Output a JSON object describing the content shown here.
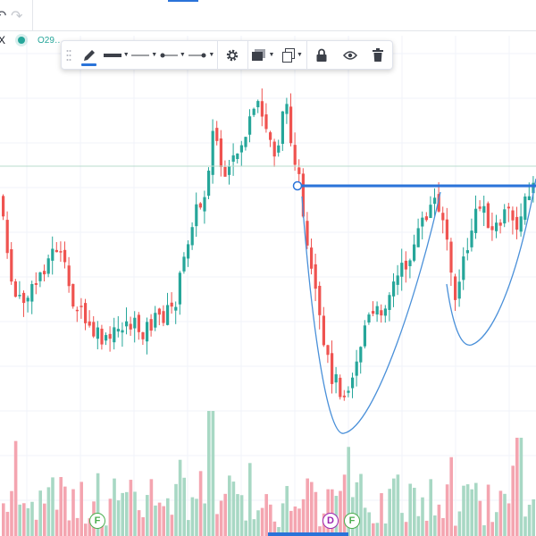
{
  "topbar": {
    "undo_icon": "undo-icon",
    "redo_icon": "redo-icon"
  },
  "legend": {
    "symbol_fragment": "X",
    "ohlc_fragment": "O29…",
    "status_color": "#26a69a"
  },
  "drawing_toolbar": {
    "tools": [
      {
        "name": "drag-handle",
        "icon": "drag-dots-icon"
      },
      {
        "name": "pencil-tool",
        "icon": "pencil-icon",
        "active": true
      },
      {
        "name": "line-thickness-dropdown",
        "icon": "thick-line-icon",
        "has_caret": true
      },
      {
        "name": "line-style-dropdown",
        "icon": "thin-line-icon",
        "has_caret": true
      },
      {
        "name": "line-start-dropdown",
        "icon": "line-start-dot-icon",
        "has_caret": true
      },
      {
        "name": "line-end-dropdown",
        "icon": "line-end-arrow-icon",
        "has_caret": true
      },
      {
        "name": "settings-button",
        "icon": "gear-icon"
      },
      {
        "name": "template-dropdown",
        "icon": "layers-icon",
        "has_caret": true
      },
      {
        "name": "clone-dropdown",
        "icon": "copy-icon",
        "has_caret": true
      },
      {
        "name": "lock-button",
        "icon": "lock-icon"
      },
      {
        "name": "visibility-button",
        "icon": "eye-icon"
      },
      {
        "name": "delete-button",
        "icon": "trash-icon"
      }
    ]
  },
  "events": [
    {
      "letter": "F",
      "type": "financials"
    },
    {
      "letter": "D",
      "type": "dividend"
    },
    {
      "letter": "F",
      "type": "financials"
    }
  ],
  "colors": {
    "up_candle": "#26a69a",
    "down_candle": "#ef5350",
    "up_volume": "#a8d8c4",
    "down_volume": "#f4a5b0",
    "drawing_line": "#2a73d9",
    "cup_curve": "#4a90d9"
  }
}
